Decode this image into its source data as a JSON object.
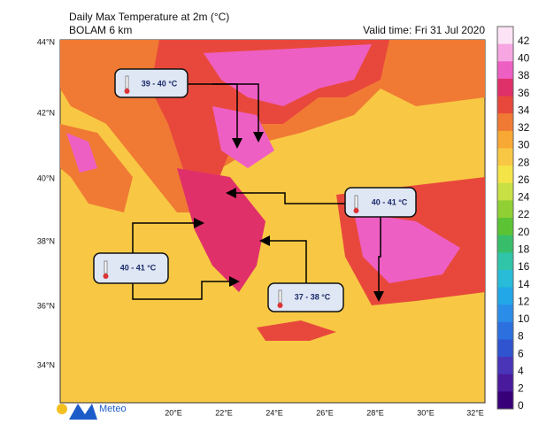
{
  "header": {
    "title": "Daily Max Temperature at 2m (°C)",
    "subtitle": "BOLAM 6 km",
    "valid_time": "Valid time: Fri 31 Jul 2020"
  },
  "latitudes": [
    "44°N",
    "42°N",
    "40°N",
    "38°N",
    "36°N",
    "34°N"
  ],
  "longitudes": [
    "20°E",
    "22°E",
    "24°E",
    "26°E",
    "28°E",
    "30°E",
    "32°E"
  ],
  "colorbar": [
    {
      "label": "42",
      "color": "#fce4f6"
    },
    {
      "label": "40",
      "color": "#f7a6e2"
    },
    {
      "label": "38",
      "color": "#ee5fc4"
    },
    {
      "label": "36",
      "color": "#e0306a"
    },
    {
      "label": "34",
      "color": "#e8483c"
    },
    {
      "label": "32",
      "color": "#f07a34"
    },
    {
      "label": "30",
      "color": "#f8a834"
    },
    {
      "label": "28",
      "color": "#f8c844"
    },
    {
      "label": "26",
      "color": "#f4e448"
    },
    {
      "label": "24",
      "color": "#c8e044"
    },
    {
      "label": "22",
      "color": "#90d034"
    },
    {
      "label": "20",
      "color": "#5cc434"
    },
    {
      "label": "18",
      "color": "#38be6a"
    },
    {
      "label": "16",
      "color": "#30c4a8"
    },
    {
      "label": "14",
      "color": "#28bcd8"
    },
    {
      "label": "12",
      "color": "#22a8e8"
    },
    {
      "label": "10",
      "color": "#2a8ee8"
    },
    {
      "label": "8",
      "color": "#2c70e0"
    },
    {
      "label": "6",
      "color": "#3054d0"
    },
    {
      "label": "4",
      "color": "#4a34b8"
    },
    {
      "label": "2",
      "color": "#4a1a9c"
    },
    {
      "label": "0",
      "color": "#380078"
    }
  ],
  "callouts": [
    "39 - 40 °C",
    "40 - 41 °C",
    "40 - 41 °C",
    "37 - 38 °C"
  ],
  "logo": "Meteo"
}
